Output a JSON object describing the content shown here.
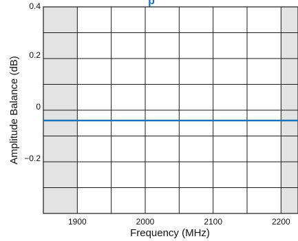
{
  "chart_data": {
    "type": "line",
    "title_fragment": "p",
    "xlabel": "Frequency (MHz)",
    "ylabel": "Amplitude Balance (dB)",
    "xlim": [
      1850,
      2225
    ],
    "ylim": [
      -0.4,
      0.4
    ],
    "x_ticks": [
      1900,
      2000,
      2100,
      2200
    ],
    "x_tick_labels": [
      "1900",
      "2000",
      "2100",
      "2200"
    ],
    "y_ticks": [
      0.4,
      0.2,
      0,
      -0.2
    ],
    "y_tick_labels": [
      "0.4",
      "0.2",
      "0",
      "−0.2"
    ],
    "grid": true,
    "shaded_x_ranges": [
      [
        1850,
        1900
      ],
      [
        2200,
        2225
      ]
    ],
    "series": [
      {
        "x": [
          1850,
          2225
        ],
        "y": [
          -0.04,
          -0.04
        ],
        "color": "#1a73b8"
      }
    ],
    "colors": {
      "shade": "#e3e3e3",
      "grid": "#1a1a1a",
      "line": "#1a73b8",
      "title": "#1a73b8"
    }
  }
}
